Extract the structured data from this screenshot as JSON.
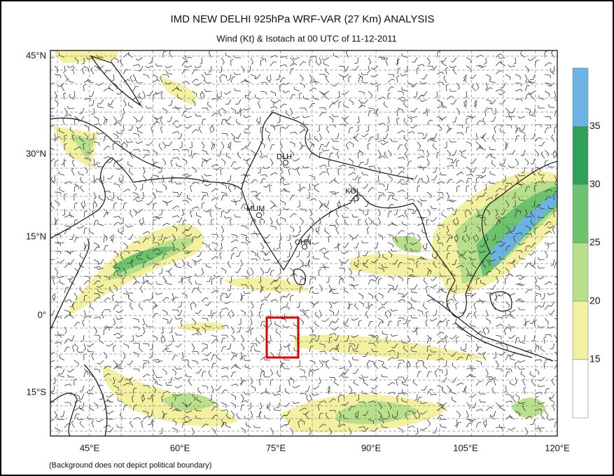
{
  "header": {
    "title": "IMD NEW DELHI 925hPa WRF-VAR (27 Km) ANALYSIS",
    "subtitle": "Wind (Kt) & Isotach at 00 UTC of 11-12-2011"
  },
  "lat_labels": [
    "45°N",
    "30°N",
    "15°N",
    "0°",
    "15°S"
  ],
  "lon_labels": [
    "45°E",
    "60°E",
    "75°E",
    "90°E",
    "105°E",
    "120°E"
  ],
  "cities": [
    "DLH",
    "KOL",
    "MUM",
    "CHN"
  ],
  "colorbar": {
    "levels": [
      15,
      20,
      25,
      30,
      35
    ],
    "colors": [
      "#ffffff",
      "#f3f0a0",
      "#b8e08a",
      "#6cc36e",
      "#2fa05a",
      "#6bb3e4"
    ]
  },
  "footnote": "(Background does not depict political boundary)"
}
